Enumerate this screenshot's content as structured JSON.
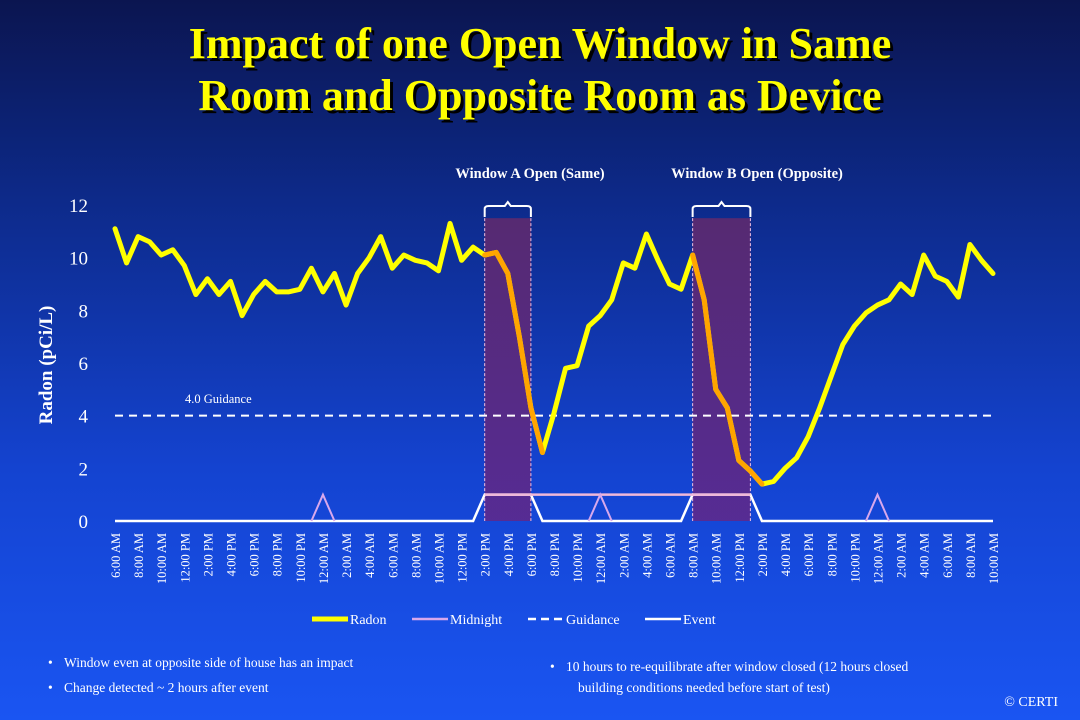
{
  "title": {
    "line1": "Impact of one Open Window in Same",
    "line2": "Room and Opposite Room as Device"
  },
  "chart_data": {
    "type": "line",
    "ylabel": "Radon (pCi/L)",
    "ylim": [
      0,
      12
    ],
    "yticks": [
      "0",
      "2",
      "4",
      "6",
      "8",
      "10",
      "12"
    ],
    "xlabels": [
      "6:00 AM",
      "8:00 AM",
      "10:00 AM",
      "12:00 PM",
      "2:00 PM",
      "4:00 PM",
      "6:00 PM",
      "8:00 PM",
      "10:00 PM",
      "12:00 AM",
      "2:00 AM",
      "4:00 AM",
      "6:00 AM",
      "8:00 AM",
      "10:00 AM",
      "12:00 PM",
      "2:00 PM",
      "4:00 PM",
      "6:00 PM",
      "8:00 PM",
      "10:00 PM",
      "12:00 AM",
      "2:00 AM",
      "4:00 AM",
      "6:00 AM",
      "8:00 AM",
      "10:00 AM",
      "12:00 PM",
      "2:00 PM",
      "4:00 PM",
      "6:00 PM",
      "8:00 PM",
      "10:00 PM",
      "12:00 AM",
      "2:00 AM",
      "4:00 AM",
      "6:00 AM",
      "8:00 AM",
      "10:00 AM"
    ],
    "hours_per_label": 2,
    "series": [
      {
        "name": "Radon",
        "color": "#ffff00",
        "values": [
          11.1,
          9.8,
          10.8,
          10.6,
          10.1,
          10.3,
          9.7,
          8.6,
          9.2,
          8.6,
          9.1,
          7.8,
          8.6,
          9.1,
          8.7,
          8.7,
          8.8,
          9.6,
          8.7,
          9.4,
          8.2,
          9.4,
          10.0,
          10.8,
          9.6,
          10.1,
          9.9,
          9.8,
          9.5,
          11.3,
          9.9,
          10.4,
          10.1,
          10.2,
          9.4,
          7.0,
          4.3,
          2.6,
          4.1,
          5.8,
          5.9,
          7.4,
          7.8,
          8.4,
          9.8,
          9.6,
          10.9,
          9.9,
          9.0,
          8.8,
          10.1,
          8.4,
          5.0,
          4.3,
          2.3,
          1.9,
          1.4,
          1.5,
          2.0,
          2.4,
          3.2,
          4.3,
          5.5,
          6.7,
          7.4,
          7.9,
          8.2,
          8.4,
          9.0,
          8.6,
          10.1,
          9.3,
          9.1,
          8.5,
          10.5,
          9.9,
          9.4
        ]
      },
      {
        "name": "Midnight",
        "color": "#d8a8ec",
        "peaks": [
          18,
          42,
          66
        ]
      },
      {
        "name": "Guidance",
        "color": "#ffffff",
        "value": 4.0,
        "label": "4.0 Guidance"
      },
      {
        "name": "Event",
        "color": "#ffffff",
        "windows": [
          [
            32,
            36
          ],
          [
            50,
            55
          ]
        ]
      }
    ],
    "event_highlight_color": "#ffa500",
    "annotations": [
      "Window A Open (Same)",
      "Window B Open (Opposite)"
    ],
    "legend": [
      "Radon",
      "Midnight",
      "Guidance",
      "Event"
    ],
    "legend_position": "bottom"
  },
  "notes": {
    "left": [
      "Window  even at opposite side of house has an impact",
      "Change detected ~ 2 hours after event"
    ],
    "right": [
      "10 hours to re-equilibrate  after window  closed  (12 hours closed",
      "building  conditions  needed before start of test)"
    ]
  },
  "copyright": "© CERTI"
}
